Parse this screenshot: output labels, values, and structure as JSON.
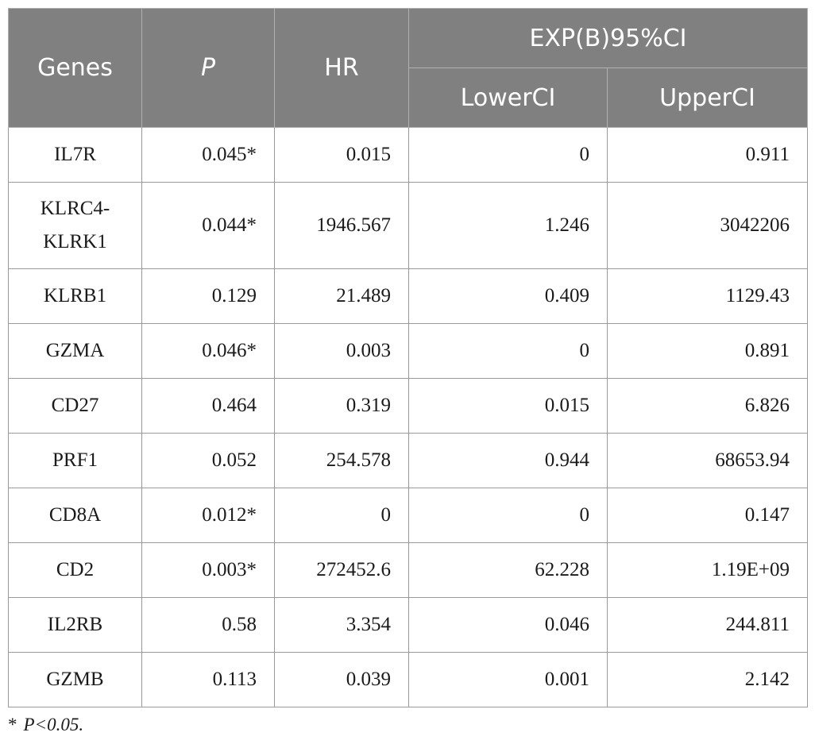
{
  "header": {
    "genes": "Genes",
    "p": "P",
    "hr": "HR",
    "group": "EXP(B)95%CI",
    "lower": "LowerCI",
    "upper": "UpperCI"
  },
  "rows": [
    {
      "gene": "IL7R",
      "p": "0.045*",
      "hr": "0.015",
      "lower": "0",
      "upper": "0.911"
    },
    {
      "gene": "KLRC4-KLRK1",
      "p": "0.044*",
      "hr": "1946.567",
      "lower": "1.246",
      "upper": "3042206"
    },
    {
      "gene": "KLRB1",
      "p": "0.129",
      "hr": "21.489",
      "lower": "0.409",
      "upper": "1129.43"
    },
    {
      "gene": "GZMA",
      "p": "0.046*",
      "hr": "0.003",
      "lower": "0",
      "upper": "0.891"
    },
    {
      "gene": "CD27",
      "p": "0.464",
      "hr": "0.319",
      "lower": "0.015",
      "upper": "6.826"
    },
    {
      "gene": "PRF1",
      "p": "0.052",
      "hr": "254.578",
      "lower": "0.944",
      "upper": "68653.94"
    },
    {
      "gene": "CD8A",
      "p": "0.012*",
      "hr": "0",
      "lower": "0",
      "upper": "0.147"
    },
    {
      "gene": "CD2",
      "p": "0.003*",
      "hr": "272452.6",
      "lower": "62.228",
      "upper": "1.19E+09"
    },
    {
      "gene": "IL2RB",
      "p": "0.58",
      "hr": "3.354",
      "lower": "0.046",
      "upper": "244.811"
    },
    {
      "gene": "GZMB",
      "p": "0.113",
      "hr": "0.039",
      "lower": "0.001",
      "upper": "2.142"
    }
  ],
  "footnote": {
    "symbol": "*",
    "text": "P<0.05."
  }
}
